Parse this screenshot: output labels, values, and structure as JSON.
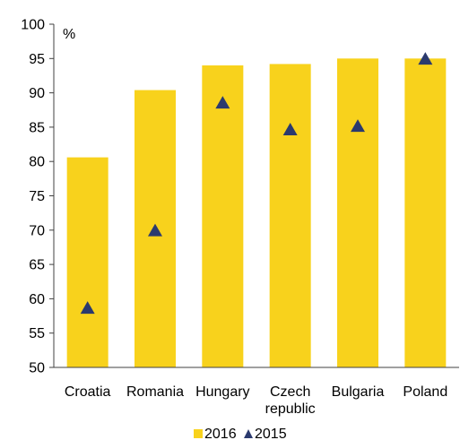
{
  "chart_data": {
    "type": "bar",
    "categories": [
      [
        "Croatia"
      ],
      [
        "Romania"
      ],
      [
        "Hungary"
      ],
      [
        "Czech",
        "republic"
      ],
      [
        "Bulgaria"
      ],
      [
        "Poland"
      ]
    ],
    "series": [
      {
        "name": "2016",
        "type": "bar",
        "color": "#F8D21C",
        "values": [
          80.6,
          90.4,
          94.0,
          94.2,
          95.0,
          95.0
        ]
      },
      {
        "name": "2015",
        "type": "marker",
        "marker": "triangle",
        "color": "#2B3A6E",
        "values": [
          58.6,
          69.9,
          88.5,
          84.6,
          85.1,
          94.9
        ]
      }
    ],
    "y_unit": "%",
    "ylim": [
      50,
      100
    ],
    "yticks": [
      50,
      55,
      60,
      65,
      70,
      75,
      80,
      85,
      90,
      95,
      100
    ],
    "grid": false,
    "legend_position": "bottom"
  }
}
